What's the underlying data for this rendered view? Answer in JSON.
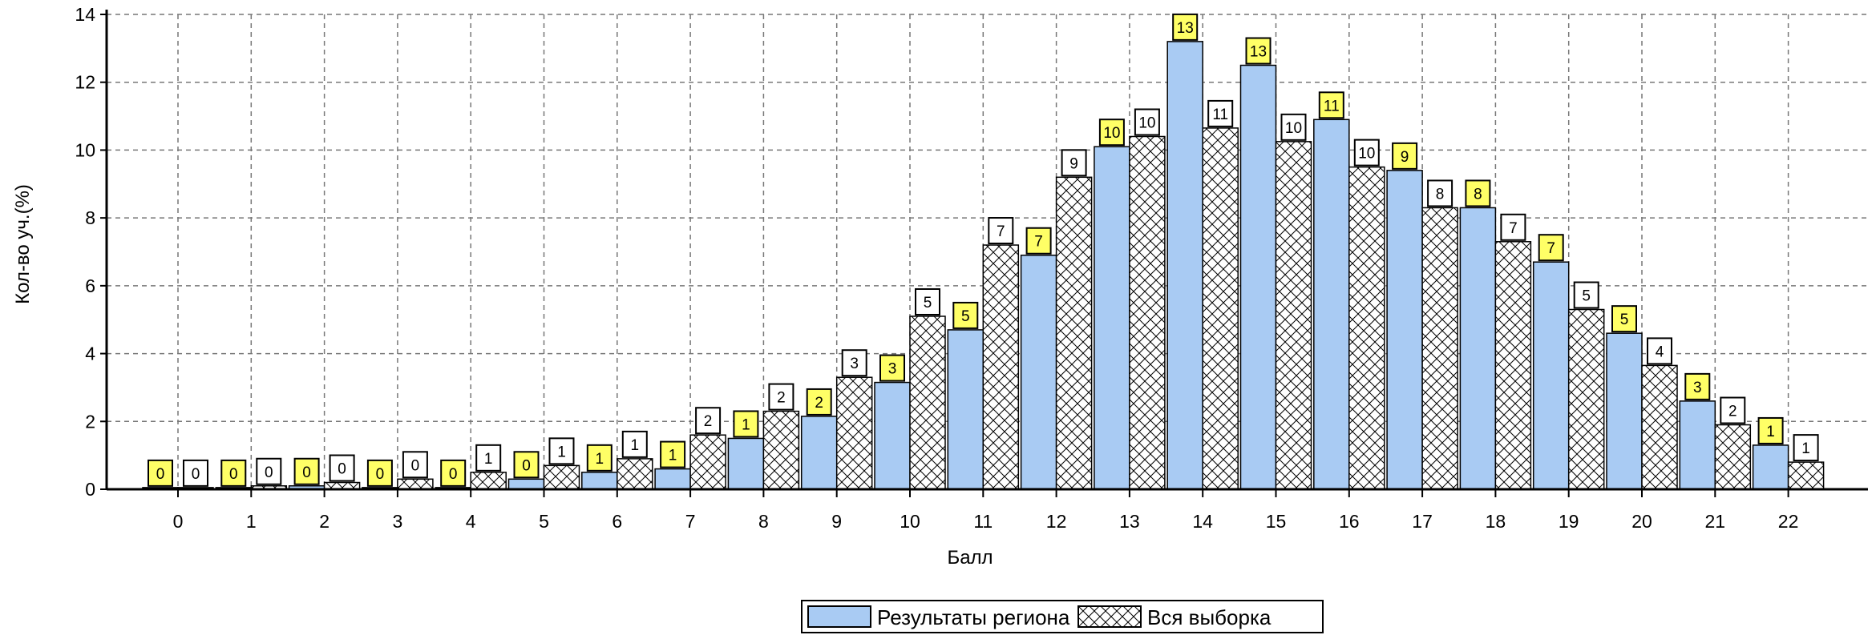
{
  "chart_data": {
    "type": "bar",
    "title": "",
    "xlabel": "Балл",
    "ylabel": "Кол-во уч.(%)",
    "ylim": [
      0,
      14
    ],
    "yticks": [
      0,
      2,
      4,
      6,
      8,
      10,
      12,
      14
    ],
    "grid": true,
    "legend": "bottom-center",
    "categories": [
      "0",
      "1",
      "2",
      "3",
      "4",
      "5",
      "6",
      "7",
      "8",
      "9",
      "10",
      "11",
      "12",
      "13",
      "14",
      "15",
      "16",
      "17",
      "18",
      "19",
      "20",
      "21",
      "22"
    ],
    "series": [
      {
        "name": "Результаты региона",
        "color": "#a9cbf3",
        "label_bg": "#ffff66",
        "pattern": "solid",
        "values": [
          0.05,
          0.05,
          0.1,
          0.05,
          0.05,
          0.3,
          0.5,
          0.6,
          1.5,
          2.15,
          3.15,
          4.7,
          6.9,
          10.1,
          13.2,
          12.5,
          10.9,
          9.4,
          8.3,
          6.7,
          4.6,
          2.6,
          1.3
        ],
        "labels": [
          "0",
          "0",
          "0",
          "0",
          "0",
          "0",
          "1",
          "1",
          "1",
          "2",
          "3",
          "5",
          "7",
          "10",
          "13",
          "13",
          "11",
          "9",
          "8",
          "7",
          "5",
          "3",
          "1"
        ]
      },
      {
        "name": "Вся выборка",
        "color": "#ffffff",
        "label_bg": "#ffffff",
        "pattern": "crosshatch",
        "values": [
          0.05,
          0.1,
          0.2,
          0.3,
          0.5,
          0.7,
          0.9,
          1.6,
          2.3,
          3.3,
          5.1,
          7.2,
          9.2,
          10.4,
          10.65,
          10.25,
          9.5,
          8.3,
          7.3,
          5.3,
          3.65,
          1.9,
          0.8
        ],
        "labels": [
          "0",
          "0",
          "0",
          "0",
          "1",
          "1",
          "1",
          "2",
          "2",
          "3",
          "5",
          "7",
          "9",
          "10",
          "11",
          "10",
          "10",
          "8",
          "7",
          "5",
          "4",
          "2",
          "1"
        ]
      }
    ]
  }
}
